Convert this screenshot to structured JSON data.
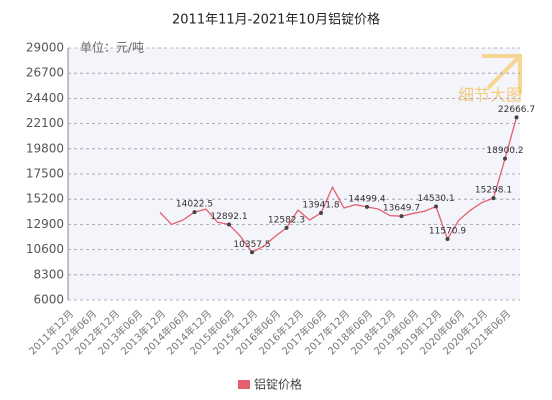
{
  "chart_data": {
    "type": "line",
    "title": "2011年11月-2021年10月铝锭价格",
    "unit_note": "单位：元/吨",
    "watermark": "细节大图",
    "categories": [
      "2011年12月",
      null,
      "2012年06月",
      null,
      "2012年12月",
      null,
      "2013年06月",
      null,
      "2013年12月",
      null,
      "2014年06月",
      null,
      "2014年12月",
      null,
      "2015年06月",
      null,
      "2015年12月",
      null,
      "2016年06月",
      null,
      "2016年12月",
      null,
      "2017年06月",
      null,
      "2017年12月",
      null,
      "2018年06月",
      null,
      "2018年12月",
      null,
      "2019年06月",
      null,
      "2019年12月",
      null,
      "2020年06月",
      null,
      "2020年12月",
      null,
      "2021年06月",
      null
    ],
    "series": [
      {
        "name": "铝锭价格",
        "color": "#e4606e",
        "values": [
          null,
          null,
          null,
          null,
          null,
          null,
          null,
          null,
          14000,
          12900,
          13300,
          14022.5,
          14300,
          13100,
          12892.1,
          11800,
          10357.5,
          10900,
          11800,
          12582.3,
          14200,
          13300,
          13941.8,
          16300,
          14400,
          14700,
          14499.4,
          14300,
          13700,
          13649.7,
          13900,
          14100,
          14530.1,
          11570.9,
          13300,
          14200,
          14900,
          15298.1,
          18900.2,
          22666.7
        ],
        "value_labels": [
          null,
          null,
          null,
          null,
          null,
          null,
          null,
          null,
          null,
          null,
          null,
          "14022.5",
          null,
          null,
          "12892.1",
          null,
          "10357.5",
          null,
          null,
          "12582.3",
          null,
          null,
          "13941.8",
          null,
          null,
          null,
          "14499.4",
          null,
          null,
          "13649.7",
          null,
          null,
          "14530.1",
          "11570.9",
          null,
          null,
          null,
          "15298.1",
          "18900.2",
          "22666.7"
        ]
      }
    ],
    "ylim": [
      6000,
      29000
    ],
    "yticks": [
      6000,
      8300,
      10600,
      12900,
      15200,
      17500,
      19800,
      22100,
      24400,
      26700,
      29000
    ],
    "grid": true
  }
}
